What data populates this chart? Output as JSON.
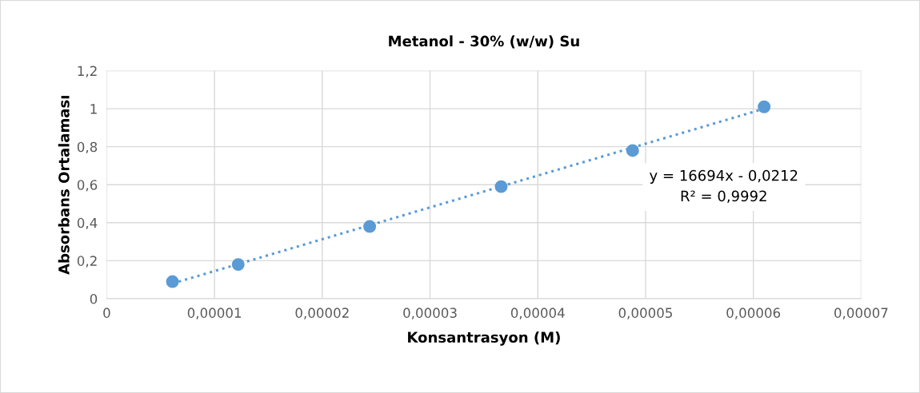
{
  "chart_data": {
    "type": "scatter",
    "title": "Metanol - 30% (w/w) Su",
    "xlabel": "Konsantrasyon (M)",
    "ylabel": "Absorbans Ortalaması",
    "series": [
      {
        "color": "#5b9bd5",
        "marker": "circle",
        "x": [
          6.1e-06,
          1.22e-05,
          2.44e-05,
          3.66e-05,
          4.88e-05,
          6.1e-05
        ],
        "values": [
          0.09,
          0.18,
          0.38,
          0.59,
          0.78,
          1.01
        ]
      },
      {
        "type": "line",
        "color": "#5b9bd5",
        "line_style": "dotted",
        "x": [
          6.1e-06,
          6.1e-05
        ],
        "values": [
          0.08,
          1.0
        ]
      }
    ],
    "annotations": [
      "y = 16694x - 0,0212\nR² = 0,9992"
    ],
    "xlim": [
      0,
      7e-05
    ],
    "ylim": [
      0,
      1.2
    ],
    "xticks": [
      0,
      {
        "value": 1e-05,
        "label": "0,00001"
      },
      {
        "value": 2e-05,
        "label": "0,00002"
      },
      {
        "value": 3e-05,
        "label": "0,00003"
      },
      {
        "value": 4e-05,
        "label": "0,00004"
      },
      {
        "value": 5e-05,
        "label": "0,00005"
      },
      {
        "value": 6e-05,
        "label": "0,00006"
      },
      {
        "value": 7e-05,
        "label": "0,00007"
      }
    ],
    "yticks": [
      0,
      {
        "value": 0.2,
        "label": "0,2"
      },
      {
        "value": 0.4,
        "label": "0,4"
      },
      {
        "value": 0.6,
        "label": "0,6"
      },
      {
        "value": 0.8,
        "label": "0,8"
      },
      1,
      {
        "value": 1.2,
        "label": "1,2"
      }
    ],
    "grid": true
  }
}
